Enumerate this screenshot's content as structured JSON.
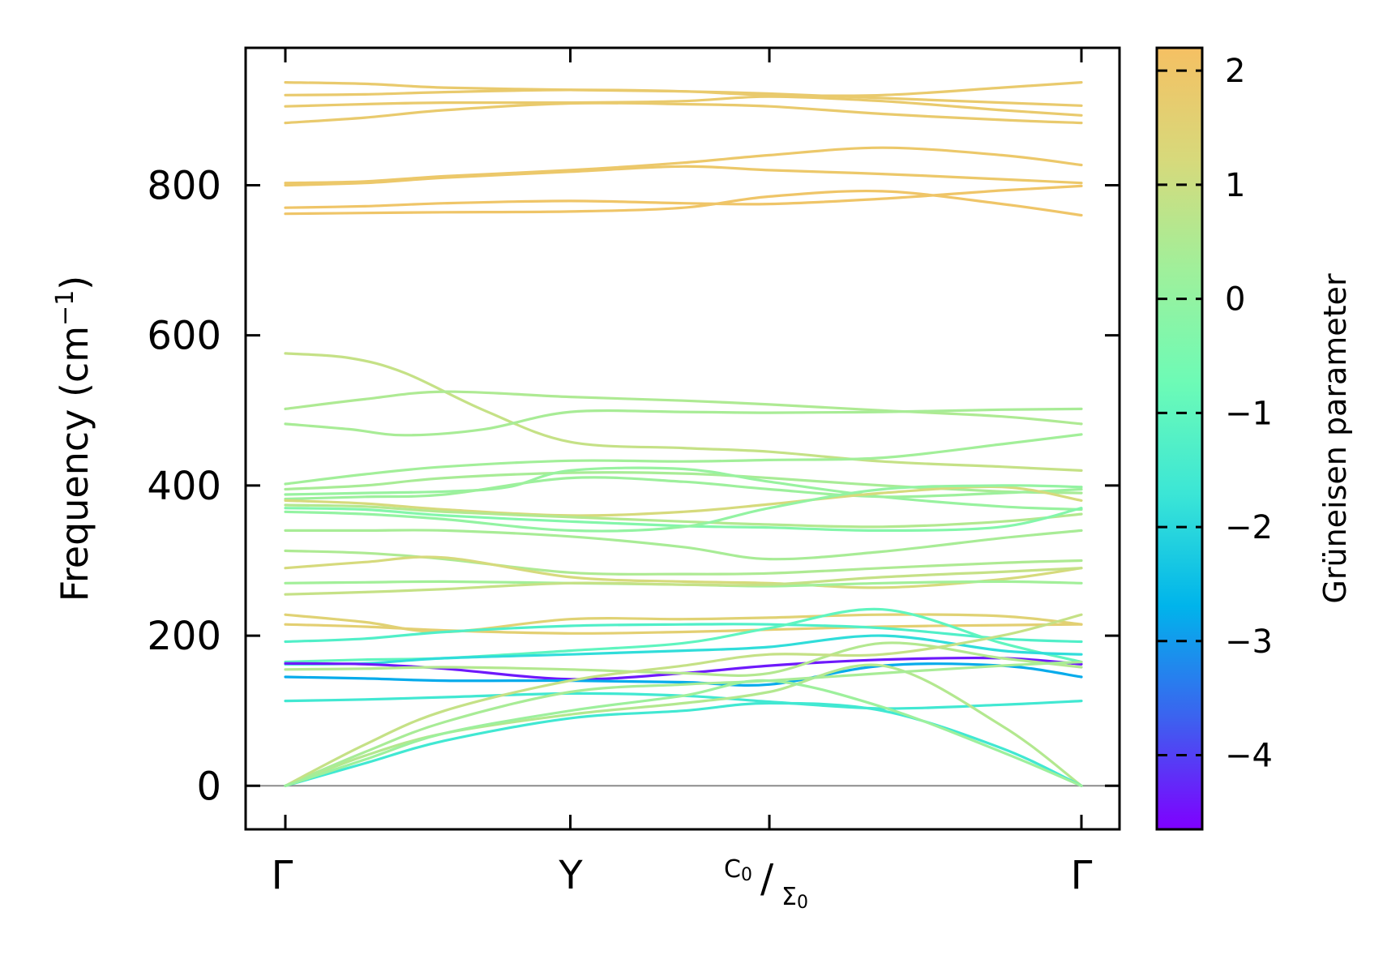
{
  "chart_data": {
    "type": "line",
    "title": "",
    "xlabel": "",
    "ylabel_main": "Frequency (cm",
    "ylabel_sup": "−1",
    "ylabel_close": ")",
    "ylim": [
      -58,
      983
    ],
    "yticks": [
      0,
      200,
      400,
      600,
      800
    ],
    "x_path": [
      {
        "label": "Γ",
        "pos": 0.0
      },
      {
        "label": "Y",
        "pos": 0.358
      },
      {
        "label_top": "C",
        "label_top_sub": "0",
        "label_bottom": "Σ",
        "label_bottom_sub": "0",
        "separator": "/",
        "pos": 0.608
      },
      {
        "label": "Γ",
        "pos": 1.0
      }
    ],
    "colorbar": {
      "label": "Grüneisen parameter",
      "range": [
        -4.65,
        2.2
      ],
      "ticks": [
        2,
        1,
        0,
        -1,
        -2,
        -3,
        -4
      ],
      "tick_labels": [
        "2",
        "1",
        "0",
        "−1",
        "−2",
        "−3",
        "−4"
      ],
      "colormap": [
        "#7f00ff",
        "#3c62ef",
        "#00b4eb",
        "#3be6d6",
        "#6dfbb6",
        "#9ff09b",
        "#d7d97b",
        "#f5c063"
      ]
    },
    "zero_line": 0,
    "branches": [
      {
        "x": [
          0,
          0.1,
          0.2,
          0.358,
          0.5,
          0.608,
          0.75,
          0.9,
          1.0
        ],
        "y": [
          937,
          935,
          930,
          927,
          925,
          922,
          916,
          910,
          906
        ],
        "g": 1.8
      },
      {
        "x": [
          0,
          0.1,
          0.2,
          0.358,
          0.5,
          0.608,
          0.75,
          0.9,
          1.0
        ],
        "y": [
          920,
          921,
          924,
          927,
          925,
          920,
          920,
          930,
          937
        ],
        "g": 1.8
      },
      {
        "x": [
          0,
          0.1,
          0.2,
          0.358,
          0.5,
          0.608,
          0.75,
          0.9,
          1.0
        ],
        "y": [
          905,
          908,
          910,
          910,
          912,
          918,
          912,
          900,
          893
        ],
        "g": 1.8
      },
      {
        "x": [
          0,
          0.1,
          0.2,
          0.358,
          0.5,
          0.608,
          0.75,
          0.9,
          1.0
        ],
        "y": [
          883,
          890,
          900,
          909,
          908,
          905,
          895,
          887,
          883
        ],
        "g": 1.8
      },
      {
        "x": [
          0,
          0.1,
          0.2,
          0.358,
          0.5,
          0.608,
          0.75,
          0.9,
          1.0
        ],
        "y": [
          803,
          805,
          812,
          820,
          830,
          840,
          850,
          840,
          827
        ],
        "g": 1.9
      },
      {
        "x": [
          0,
          0.1,
          0.2,
          0.358,
          0.5,
          0.608,
          0.75,
          0.9,
          1.0
        ],
        "y": [
          800,
          803,
          810,
          818,
          825,
          820,
          815,
          808,
          803
        ],
        "g": 1.9
      },
      {
        "x": [
          0,
          0.1,
          0.2,
          0.358,
          0.5,
          0.608,
          0.75,
          0.9,
          1.0
        ],
        "y": [
          770,
          772,
          776,
          779,
          776,
          775,
          782,
          793,
          799
        ],
        "g": 2.0
      },
      {
        "x": [
          0,
          0.1,
          0.2,
          0.358,
          0.5,
          0.608,
          0.75,
          0.9,
          1.0
        ],
        "y": [
          762,
          763,
          764,
          765,
          770,
          785,
          792,
          775,
          760
        ],
        "g": 2.0
      },
      {
        "x": [
          0,
          0.08,
          0.15,
          0.25,
          0.358,
          0.5,
          0.608,
          0.75,
          0.9,
          1.0
        ],
        "y": [
          576,
          570,
          550,
          500,
          458,
          450,
          445,
          432,
          425,
          420
        ],
        "g": 0.9
      },
      {
        "x": [
          0,
          0.1,
          0.2,
          0.358,
          0.5,
          0.608,
          0.75,
          0.9,
          1.0
        ],
        "y": [
          502,
          515,
          525,
          518,
          513,
          508,
          500,
          492,
          482
        ],
        "g": 0.5
      },
      {
        "x": [
          0,
          0.08,
          0.15,
          0.25,
          0.358,
          0.5,
          0.608,
          0.75,
          0.9,
          1.0
        ],
        "y": [
          482,
          475,
          467,
          475,
          498,
          498,
          497,
          498,
          501,
          502
        ],
        "g": 0.4
      },
      {
        "x": [
          0,
          0.1,
          0.2,
          0.358,
          0.5,
          0.608,
          0.75,
          0.9,
          1.0
        ],
        "y": [
          402,
          415,
          425,
          433,
          432,
          434,
          437,
          455,
          468
        ],
        "g": 0.3
      },
      {
        "x": [
          0,
          0.1,
          0.2,
          0.358,
          0.5,
          0.608,
          0.75,
          0.9,
          1.0
        ],
        "y": [
          395,
          400,
          410,
          417,
          416,
          410,
          400,
          392,
          390
        ],
        "g": 0.4
      },
      {
        "x": [
          0,
          0.1,
          0.2,
          0.28,
          0.358,
          0.5,
          0.608,
          0.75,
          0.9,
          1.0
        ],
        "y": [
          388,
          390,
          392,
          398,
          420,
          422,
          405,
          385,
          372,
          368
        ],
        "g": 0.1
      },
      {
        "x": [
          0,
          0.1,
          0.2,
          0.358,
          0.5,
          0.608,
          0.75,
          0.9,
          1.0
        ],
        "y": [
          382,
          385,
          388,
          410,
          405,
          395,
          385,
          390,
          395
        ],
        "g": 0.2
      },
      {
        "x": [
          0,
          0.1,
          0.2,
          0.358,
          0.5,
          0.608,
          0.75,
          0.9,
          1.0
        ],
        "y": [
          380,
          376,
          368,
          360,
          365,
          375,
          390,
          398,
          380
        ],
        "g": 1.2
      },
      {
        "x": [
          0,
          0.1,
          0.2,
          0.358,
          0.5,
          0.608,
          0.75,
          0.9,
          1.0
        ],
        "y": [
          374,
          372,
          365,
          358,
          352,
          348,
          345,
          352,
          362
        ],
        "g": 0.6
      },
      {
        "x": [
          0,
          0.1,
          0.2,
          0.358,
          0.5,
          0.608,
          0.75,
          0.9,
          1.0
        ],
        "y": [
          370,
          368,
          360,
          352,
          346,
          344,
          340,
          345,
          370
        ],
        "g": -0.3
      },
      {
        "x": [
          0,
          0.1,
          0.2,
          0.358,
          0.5,
          0.608,
          0.75,
          0.9,
          1.0
        ],
        "y": [
          365,
          362,
          355,
          340,
          345,
          370,
          395,
          400,
          398
        ],
        "g": 0.0
      },
      {
        "x": [
          0,
          0.1,
          0.2,
          0.358,
          0.5,
          0.608,
          0.75,
          0.9,
          1.0
        ],
        "y": [
          340,
          340,
          340,
          332,
          318,
          302,
          312,
          330,
          340
        ],
        "g": 0.4
      },
      {
        "x": [
          0,
          0.1,
          0.2,
          0.358,
          0.5,
          0.608,
          0.75,
          0.9,
          1.0
        ],
        "y": [
          313,
          310,
          302,
          284,
          282,
          283,
          290,
          297,
          300
        ],
        "g": 0.5
      },
      {
        "x": [
          0,
          0.1,
          0.2,
          0.358,
          0.5,
          0.608,
          0.75,
          0.9,
          1.0
        ],
        "y": [
          290,
          298,
          304,
          278,
          272,
          270,
          264,
          275,
          290
        ],
        "g": 1.2
      },
      {
        "x": [
          0,
          0.1,
          0.2,
          0.358,
          0.5,
          0.608,
          0.75,
          0.9,
          1.0
        ],
        "y": [
          270,
          271,
          272,
          270,
          268,
          266,
          270,
          272,
          270
        ],
        "g": 0.3
      },
      {
        "x": [
          0,
          0.1,
          0.2,
          0.358,
          0.5,
          0.608,
          0.75,
          0.9,
          1.0
        ],
        "y": [
          255,
          258,
          262,
          270,
          268,
          268,
          278,
          285,
          290
        ],
        "g": 0.9
      },
      {
        "x": [
          0,
          0.1,
          0.2,
          0.358,
          0.5,
          0.608,
          0.75,
          0.9,
          1.0
        ],
        "y": [
          228,
          218,
          205,
          222,
          222,
          224,
          228,
          226,
          215
        ],
        "g": 1.5
      },
      {
        "x": [
          0,
          0.1,
          0.2,
          0.358,
          0.5,
          0.608,
          0.75,
          0.9,
          1.0
        ],
        "y": [
          215,
          212,
          207,
          203,
          205,
          208,
          212,
          214,
          215
        ],
        "g": 1.6
      },
      {
        "x": [
          0,
          0.1,
          0.2,
          0.358,
          0.5,
          0.608,
          0.75,
          0.9,
          1.0
        ],
        "y": [
          192,
          196,
          205,
          213,
          215,
          215,
          210,
          196,
          192
        ],
        "g": -1.3
      },
      {
        "x": [
          0,
          0.1,
          0.2,
          0.358,
          0.5,
          0.608,
          0.75,
          0.9,
          1.0
        ],
        "y": [
          165,
          168,
          170,
          180,
          190,
          210,
          235,
          190,
          165
        ],
        "g": -1.0
      },
      {
        "x": [
          0,
          0.1,
          0.2,
          0.358,
          0.5,
          0.608,
          0.75,
          0.9,
          1.0
        ],
        "y": [
          162,
          163,
          170,
          175,
          180,
          185,
          200,
          180,
          175
        ],
        "g": -1.9
      },
      {
        "x": [
          0,
          0.1,
          0.2,
          0.358,
          0.5,
          0.608,
          0.75,
          0.9,
          1.0
        ],
        "y": [
          163,
          162,
          156,
          142,
          150,
          160,
          168,
          170,
          162
        ],
        "g": -4.4
      },
      {
        "x": [
          0,
          0.1,
          0.2,
          0.358,
          0.5,
          0.608,
          0.75,
          0.9,
          1.0
        ],
        "y": [
          145,
          143,
          140,
          140,
          138,
          135,
          160,
          160,
          145
        ],
        "g": -2.8
      },
      {
        "x": [
          0,
          0.1,
          0.2,
          0.358,
          0.5,
          0.608,
          0.75,
          0.9,
          1.0
        ],
        "y": [
          155,
          156,
          158,
          155,
          150,
          150,
          190,
          170,
          158
        ],
        "g": 0.6
      },
      {
        "x": [
          0,
          0.1,
          0.2,
          0.358,
          0.5,
          0.608,
          0.75,
          0.9,
          1.0
        ],
        "y": [
          113,
          115,
          118,
          123,
          120,
          112,
          103,
          108,
          113
        ],
        "g": -1.6
      },
      {
        "x": [
          0,
          0.1,
          0.2,
          0.358,
          0.5,
          0.608,
          0.75,
          0.9,
          1.0
        ],
        "y": [
          0,
          40,
          70,
          95,
          110,
          125,
          160,
          80,
          0
        ],
        "g": 0.6
      },
      {
        "x": [
          0,
          0.1,
          0.2,
          0.358,
          0.5,
          0.608,
          0.75,
          0.9,
          1.0
        ],
        "y": [
          0,
          45,
          85,
          125,
          135,
          140,
          150,
          160,
          165
        ],
        "g": 0.4
      },
      {
        "x": [
          0,
          0.1,
          0.2,
          0.358,
          0.5,
          0.608,
          0.75,
          0.9,
          1.0
        ],
        "y": [
          0,
          55,
          100,
          140,
          160,
          175,
          175,
          200,
          228
        ],
        "g": 0.9
      },
      {
        "x": [
          0,
          0.1,
          0.2,
          0.358,
          0.5,
          0.608,
          0.75,
          0.9,
          1.0
        ],
        "y": [
          0,
          30,
          60,
          90,
          100,
          110,
          100,
          50,
          0
        ],
        "g": -1.6
      },
      {
        "x": [
          0,
          0.1,
          0.2,
          0.358,
          0.5,
          0.608,
          0.75,
          0.9,
          1.0
        ],
        "y": [
          0,
          35,
          70,
          100,
          120,
          140,
          105,
          45,
          0
        ],
        "g": 0.2
      }
    ]
  }
}
